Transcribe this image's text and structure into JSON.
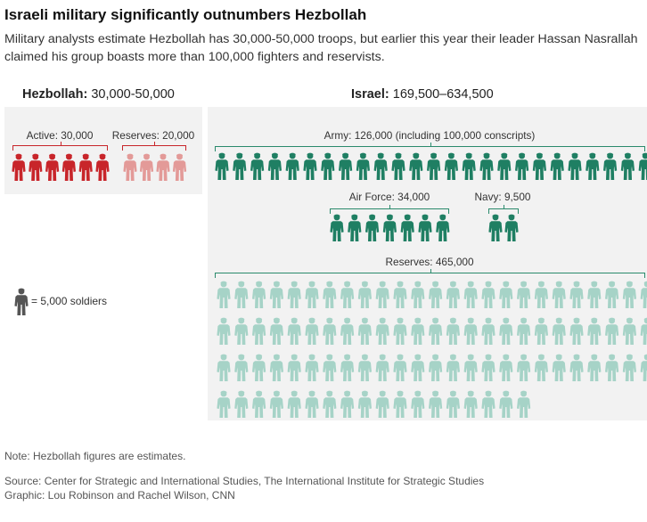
{
  "title": "Israeli military significantly outnumbers Hezbollah",
  "subtitle": "Military analysts estimate Hezbollah has 30,000-50,000 troops, but earlier this year their leader Hassan Nasrallah claimed his group boasts more than 100,000 fighters and reservists.",
  "hezbollah": {
    "name": "Hezbollah:",
    "range": "30,000-50,000",
    "groups": [
      {
        "label": "Active: 30,000",
        "soldiers": 30000,
        "icons": 6,
        "color": "#c8252a"
      },
      {
        "label": "Reserves: 20,000",
        "soldiers": 20000,
        "icons": 4,
        "color": "#e39a98"
      }
    ]
  },
  "israel": {
    "name": "Israel:",
    "range": "169,500–634,500",
    "groups": [
      {
        "label": "Army: 126,000 (including 100,000 conscripts)",
        "soldiers": 126000,
        "icons": 25,
        "color": "#1f7f63"
      },
      {
        "label": "Air Force: 34,000",
        "soldiers": 34000,
        "icons": 7,
        "color": "#1f7f63"
      },
      {
        "label": "Navy: 9,500",
        "soldiers": 9500,
        "icons": 2,
        "color": "#1f7f63"
      },
      {
        "label": "Reserves: 465,000",
        "soldiers": 465000,
        "icons": 93,
        "color": "#a6d3c7"
      }
    ]
  },
  "legend": {
    "text": "= 5,000 soldiers",
    "color": "#555555"
  },
  "note": "Note: Hezbollah figures are estimates.",
  "source": "Source: Center for Strategic and International Studies, The International Institute for Strategic Studies",
  "credit": "Graphic: Lou Robinson and Rachel Wilson, CNN",
  "chart_data": {
    "type": "pictogram",
    "title": "Israeli military significantly outnumbers Hezbollah",
    "unit": "1 icon = 5,000 soldiers",
    "series": [
      {
        "name": "Hezbollah",
        "categories": [
          "Active",
          "Reserves"
        ],
        "values": [
          30000,
          20000
        ]
      },
      {
        "name": "Israel",
        "categories": [
          "Army",
          "Air Force",
          "Navy",
          "Reserves"
        ],
        "values": [
          126000,
          34000,
          9500,
          465000
        ]
      }
    ]
  }
}
